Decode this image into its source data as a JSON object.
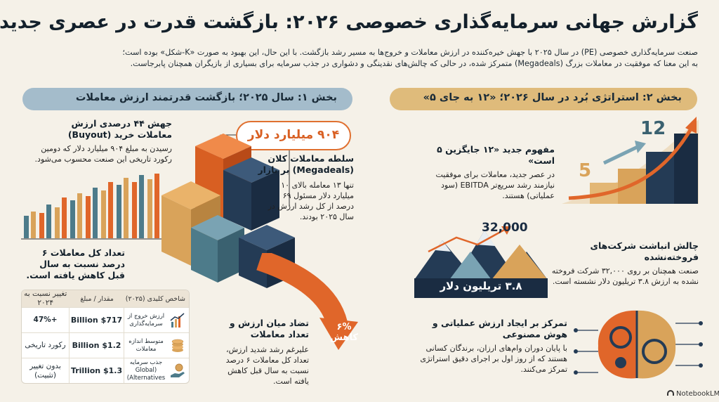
{
  "title": "گزارش جهانی سرمایه‌گذاری خصوصی ۲۰۲۶: بازگشت قدرت در عصری جدید",
  "intro": [
    "صنعت سرمایه‌گذاری خصوصی (PE) در سال ۲۰۲۵ با جهش خیره‌کننده در ارزش معاملات و خروج‌ها به مسیر رشد بازگشت. با این حال، این بهبود به صورت «K-شکل» بوده است؛",
    "به این معنا که موفقیت در معاملات بزرگ (Megadeals) متمرکز شده، در حالی که چالش‌های نقدینگی و دشواری در جذب سرمایه برای بسیاری از بازیگران همچنان پابرجاست."
  ],
  "section1": {
    "header": "بخش ۱: سال ۲۰۲۵؛ بازگشت قدرتمند ارزش معاملات",
    "buyout": {
      "title": "جهش ۴۴ درصدی ارزش معاملات خرید (Buyout)",
      "body": "رسیدن به مبلغ ۹۰۴ میلیارد دلار که دومین رکورد تاریخی این صنعت محسوب می‌شود."
    },
    "badge": "۹۰۴ میلیارد دلار",
    "megadeals": {
      "title": "سلطه معاملات کلان (Megadeals) بر بازار",
      "body": "تنها ۱۳ معامله بالای ۱۰ میلیارد دلار مسئول ۶۹ درصد از کل رشد ارزش در سال ۲۰۲۵ بودند."
    },
    "count": {
      "title": "تعداد کل معاملات ۶ درصد نسبت به سال قبل کاهش یافته است."
    },
    "arrow_label": "۶% کاهش",
    "contrast": {
      "title": "تضاد میان ارزش و تعداد معاملات",
      "body": "علیرغم رشد شدید ارزش، تعداد کل معاملات ۶ درصد نسبت به سال قبل کاهش یافته است."
    },
    "table": {
      "headers": {
        "metric": "شاخص کلیدی (۲۰۲۵)",
        "value": "مقدار / مبلغ",
        "change": "تغییر نسبت به ۲۰۲۴"
      },
      "rows": [
        {
          "metric": "ارزش خروج از سرمایه‌گذاری",
          "value": "$717 Billion",
          "change": "+47%",
          "icon": "growth-chart-icon"
        },
        {
          "metric": "متوسط اندازه معاملات",
          "value": "$1.2 Billion",
          "change": "رکورد تاریخی",
          "icon": "coin-stack-icon"
        },
        {
          "metric": "جذب سرمایه (Global Alternatives)",
          "value": "$1.3 Trillion",
          "change": "بدون تغییر (تثبیت)",
          "icon": "hand-coin-icon"
        }
      ]
    }
  },
  "section2": {
    "header": "بخش ۲: استراتژی بُرد در سال ۲۰۲۶؛ «۱۲ به جای ۵»",
    "strategy": {
      "title": "مفهوم جدید «۱۲ جایگزین ۵ است»",
      "body": "در عصر جدید، معاملات برای موفقیت نیازمند رشد سریع‌تر EBITDA (سود عملیاتی) هستند.",
      "num_small": "5",
      "num_large": "12"
    },
    "backlog": {
      "number": "32,000",
      "mountain_label": "۳.۸ تریلیون دلار",
      "title": "چالش انباشت شرکت‌های فروخته‌نشده",
      "body": "صنعت همچنان بر روی ۳۲,۰۰۰ شرکت فروخته نشده به ارزش ۳.۸ تریلیون دلار نشسته است."
    },
    "ai": {
      "title": "تمرکز بر ایجاد ارزش عملیاتی و هوش مصنوعی",
      "body": "با پایان دوران وام‌های ارزان، برندگان کسانی هستند که از روز اول بر اجرای دقیق استراتژی تمرکز می‌کنند."
    }
  },
  "footer": {
    "logo": "NotebookLM"
  },
  "colors": {
    "orange": "#e0662a",
    "navy": "#243b55",
    "teal": "#4d7b8a",
    "gold": "#d9a35a",
    "bg": "#f5f1e8"
  }
}
